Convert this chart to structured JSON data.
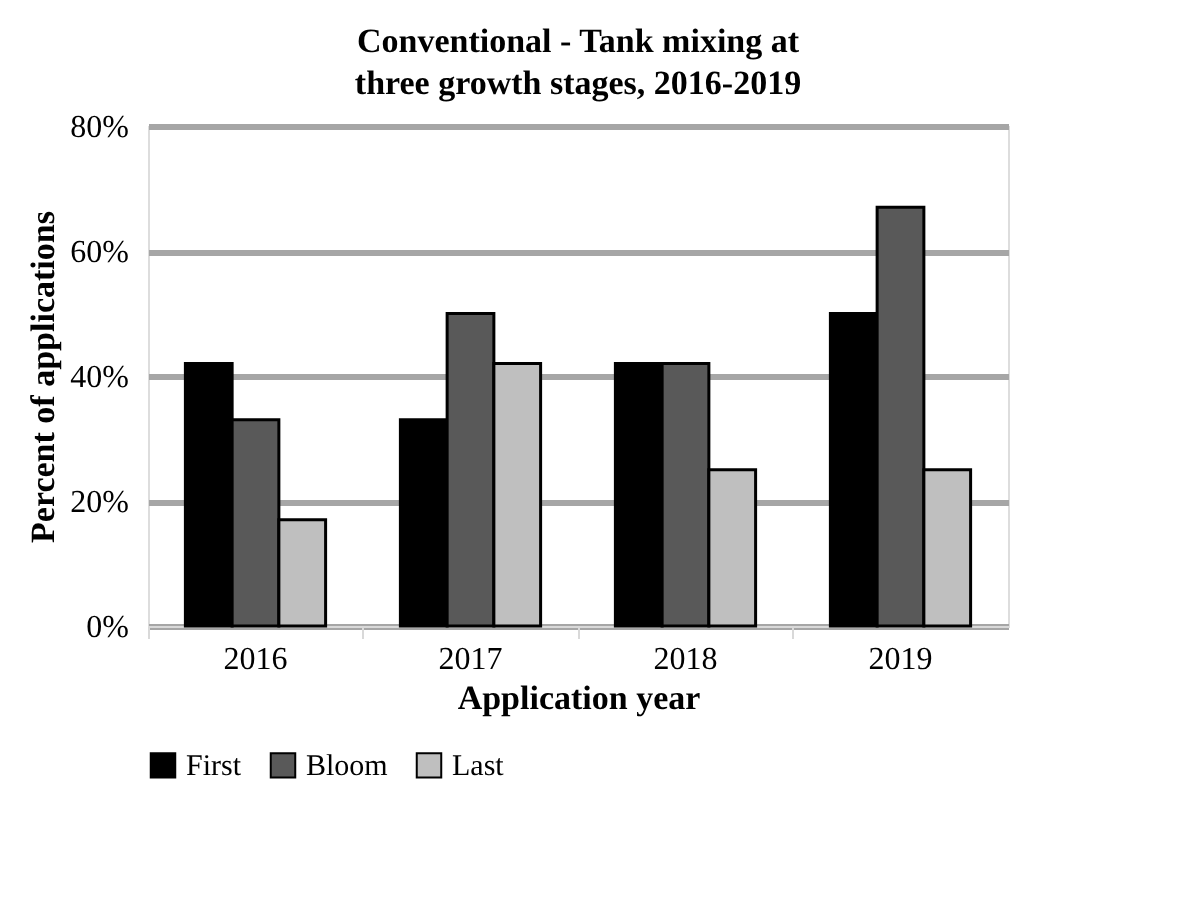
{
  "chart_data": {
    "type": "bar",
    "title": "Conventional - Tank mixing at three growth stages, 2016-2019",
    "xlabel": "Application year",
    "ylabel": "Percent of applications",
    "categories": [
      "2016",
      "2017",
      "2018",
      "2019"
    ],
    "series": [
      {
        "name": "First",
        "color": "#000000",
        "values": [
          42,
          33,
          42,
          50
        ]
      },
      {
        "name": "Bloom",
        "color": "#595959",
        "values": [
          33,
          50,
          42,
          67
        ]
      },
      {
        "name": "Last",
        "color": "#bfbfbf",
        "values": [
          17,
          42,
          25,
          25
        ]
      }
    ],
    "ylim": [
      0,
      80
    ],
    "yticks": [
      {
        "value": 0,
        "label": "0%"
      },
      {
        "value": 20,
        "label": "20%"
      },
      {
        "value": 40,
        "label": "40%"
      },
      {
        "value": 60,
        "label": "60%"
      },
      {
        "value": 80,
        "label": "80%"
      }
    ],
    "grid": "y",
    "legend": "bottom"
  }
}
